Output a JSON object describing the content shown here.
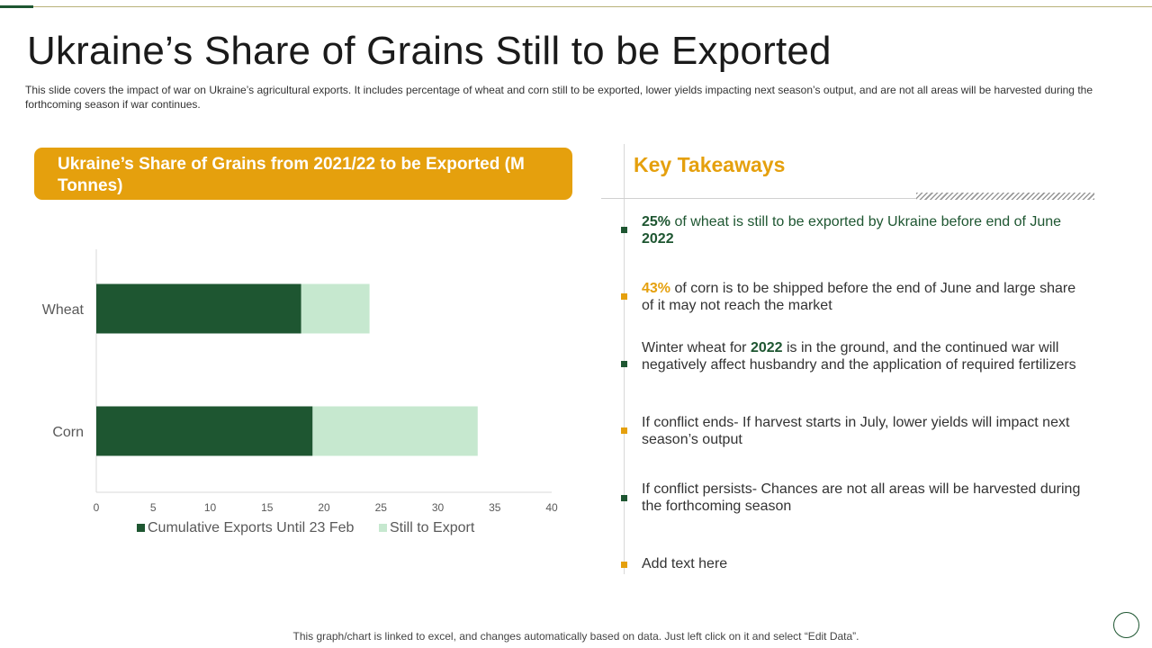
{
  "slide": {
    "title": "Ukraine’s Share of Grains Still to be Exported",
    "subtitle": "This slide covers the impact of war on Ukraine’s agricultural exports. It includes percentage of wheat and corn still to be exported, lower yields impacting next season’s output, and are not all areas will be harvested  during the forthcoming season if war continues.",
    "footer": "This graph/chart is linked to excel,  and changes automatically based on data. Just left click on it and select “Edit Data”."
  },
  "chart_header": "Ukraine’s Share of Grains from 2021/22 to be Exported (M Tonnes)",
  "chart_data": {
    "type": "bar",
    "orientation": "horizontal",
    "stacked": true,
    "title": "Ukraine’s Share of Grains from 2021/22 to be Exported (M Tonnes)",
    "categories": [
      "Wheat",
      "Corn"
    ],
    "series": [
      {
        "name": "Cumulative Exports Until 23 Feb",
        "values": [
          18,
          19
        ],
        "color": "#1e5631"
      },
      {
        "name": "Still to Export",
        "values": [
          6,
          14.5
        ],
        "color": "#c6e8cf"
      }
    ],
    "xlim": [
      0,
      40
    ],
    "xticks": [
      0,
      5,
      10,
      15,
      20,
      25,
      30,
      35,
      40
    ],
    "xlabel": "",
    "ylabel": "",
    "grid": false,
    "legend_position": "bottom"
  },
  "takeaways": {
    "title": "Key Takeaways",
    "items": [
      {
        "pre": "",
        "highlight": "25%",
        "post": " of wheat is still to be exported by Ukraine before end of June ",
        "highlight2": "2022",
        "post2": "",
        "style": "green-all",
        "bullet_color": "#1e5631"
      },
      {
        "pre": "",
        "highlight": "43%",
        "post": " of corn is to be shipped before the end of June and large share of it may not reach the market",
        "highlight2": "",
        "post2": "",
        "style": "orange",
        "bullet_color": "#e5a00d"
      },
      {
        "pre": "Winter wheat for ",
        "highlight": "2022",
        "post": " is in the ground, and the continued war will negatively  affect husbandry and the application of required fertilizers",
        "highlight2": "",
        "post2": "",
        "style": "green",
        "bullet_color": "#1e5631"
      },
      {
        "pre": "If conflict ends- If harvest starts in July, lower yields will impact next season’s output",
        "highlight": "",
        "post": "",
        "highlight2": "",
        "post2": "",
        "style": "plain",
        "bullet_color": "#e5a00d"
      },
      {
        "pre": "If conflict persists- Chances are not all areas will be harvested during the forthcoming season",
        "highlight": "",
        "post": "",
        "highlight2": "",
        "post2": "",
        "style": "plain",
        "bullet_color": "#1e5631"
      },
      {
        "pre": "Add text here",
        "highlight": "",
        "post": "",
        "highlight2": "",
        "post2": "",
        "style": "plain",
        "bullet_color": "#e5a00d"
      }
    ]
  }
}
